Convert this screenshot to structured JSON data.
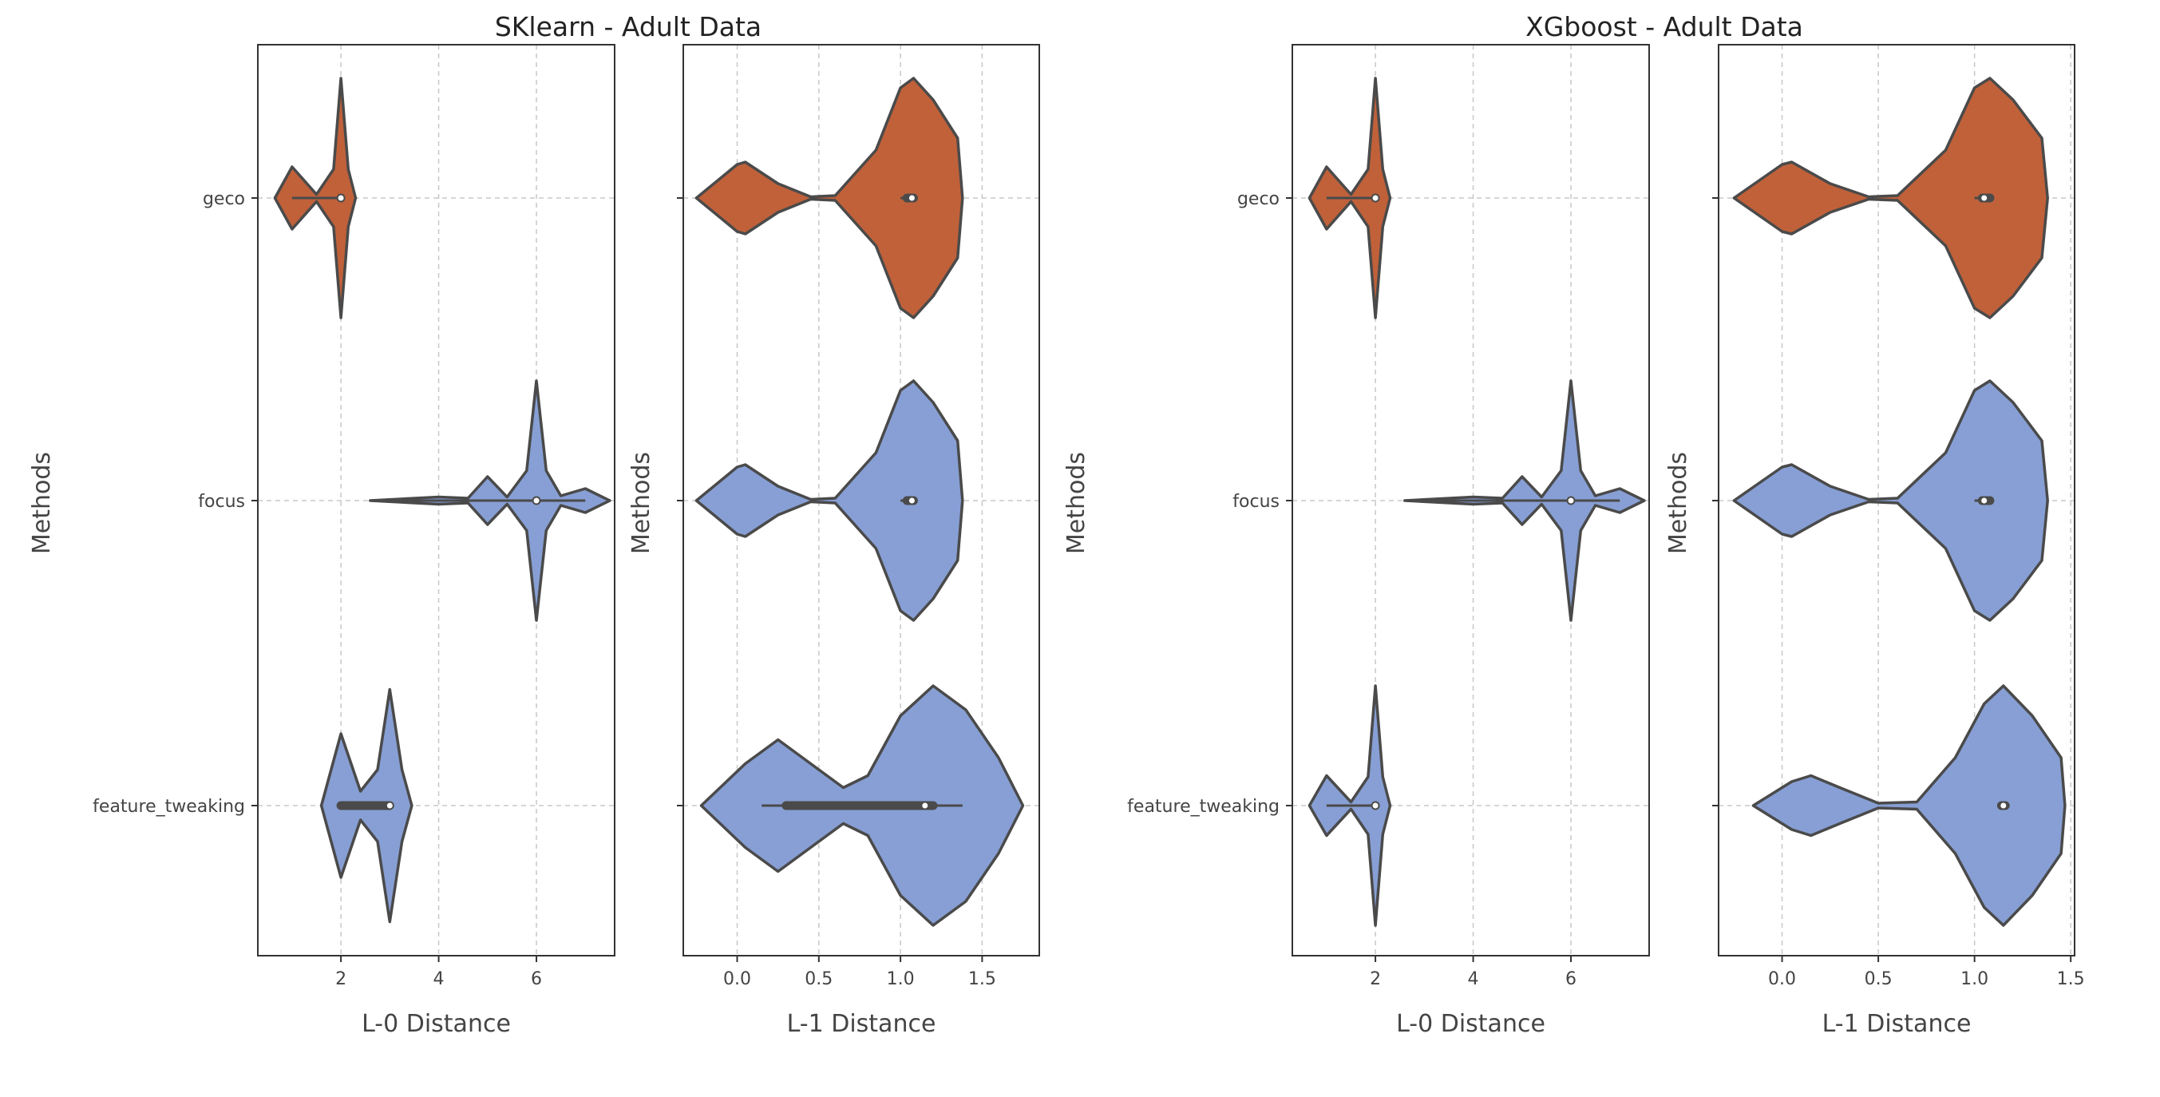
{
  "figure_titles": [
    "SKlearn - Adult Data",
    "XGboost - Adult Data"
  ],
  "colors": {
    "geco": "#c0613a",
    "focus": "#879fd4",
    "feature_tweaking": "#879fd4",
    "outline": "#4a4a4a",
    "grid": "#c8c8c8"
  },
  "chart_data": [
    {
      "type": "violin",
      "group": "SKlearn - Adult Data",
      "xlabel": "L-0 Distance",
      "ylabel": "Methods",
      "categories": [
        "geco",
        "focus",
        "feature_tweaking"
      ],
      "xlim": [
        0.3,
        7.6
      ],
      "xticks": [
        2,
        4,
        6
      ],
      "xtick_labels": [
        "2",
        "4",
        "6"
      ],
      "show_ytick_labels": true,
      "series": [
        {
          "name": "geco",
          "median": 2.0,
          "q1": 2.0,
          "q3": 2.0,
          "min": 1.0,
          "max": 2.0,
          "density": [
            [
              0.65,
              0
            ],
            [
              1.0,
              0.26
            ],
            [
              1.5,
              0.03
            ],
            [
              1.85,
              0.24
            ],
            [
              2.0,
              1.0
            ],
            [
              2.15,
              0.24
            ],
            [
              2.3,
              0
            ]
          ]
        },
        {
          "name": "focus",
          "median": 6.0,
          "q1": 6.0,
          "q3": 6.0,
          "min": 3.0,
          "max": 7.0,
          "density": [
            [
              2.6,
              0
            ],
            [
              4.0,
              0.03
            ],
            [
              4.6,
              0.02
            ],
            [
              5.0,
              0.2
            ],
            [
              5.4,
              0.03
            ],
            [
              5.8,
              0.25
            ],
            [
              6.0,
              1.0
            ],
            [
              6.2,
              0.25
            ],
            [
              6.5,
              0.04
            ],
            [
              7.0,
              0.1
            ],
            [
              7.5,
              0
            ]
          ]
        },
        {
          "name": "feature_tweaking",
          "median": 3.0,
          "q1": 2.0,
          "q3": 3.0,
          "min": 2.0,
          "max": 3.0,
          "density": [
            [
              1.6,
              0
            ],
            [
              2.0,
              0.6
            ],
            [
              2.4,
              0.12
            ],
            [
              2.75,
              0.3
            ],
            [
              3.0,
              0.97
            ],
            [
              3.25,
              0.3
            ],
            [
              3.45,
              0
            ]
          ]
        }
      ]
    },
    {
      "type": "violin",
      "group": "SKlearn - Adult Data",
      "xlabel": "L-1 Distance",
      "ylabel": "Methods",
      "categories": [
        "geco",
        "focus",
        "feature_tweaking"
      ],
      "xlim": [
        -0.33,
        1.85
      ],
      "xticks": [
        0.0,
        0.5,
        1.0,
        1.5
      ],
      "xtick_labels": [
        "0.0",
        "0.5",
        "1.0",
        "1.5"
      ],
      "show_ytick_labels": false,
      "series": [
        {
          "name": "geco",
          "median": 1.07,
          "q1": 1.04,
          "q3": 1.08,
          "min": 1.0,
          "max": 1.1,
          "density": [
            [
              -0.25,
              0
            ],
            [
              0.0,
              0.28
            ],
            [
              0.05,
              0.3
            ],
            [
              0.25,
              0.12
            ],
            [
              0.45,
              0.01
            ],
            [
              0.6,
              0.02
            ],
            [
              0.85,
              0.4
            ],
            [
              1.0,
              0.92
            ],
            [
              1.08,
              1.0
            ],
            [
              1.2,
              0.82
            ],
            [
              1.35,
              0.5
            ],
            [
              1.38,
              0
            ]
          ]
        },
        {
          "name": "focus",
          "median": 1.07,
          "q1": 1.04,
          "q3": 1.08,
          "min": 1.0,
          "max": 1.1,
          "density": [
            [
              -0.25,
              0
            ],
            [
              0.0,
              0.28
            ],
            [
              0.05,
              0.3
            ],
            [
              0.25,
              0.12
            ],
            [
              0.45,
              0.01
            ],
            [
              0.6,
              0.02
            ],
            [
              0.85,
              0.4
            ],
            [
              1.0,
              0.92
            ],
            [
              1.08,
              1.0
            ],
            [
              1.2,
              0.82
            ],
            [
              1.35,
              0.5
            ],
            [
              1.38,
              0
            ]
          ]
        },
        {
          "name": "feature_tweaking",
          "median": 1.15,
          "q1": 0.3,
          "q3": 1.2,
          "min": 0.15,
          "max": 1.38,
          "density": [
            [
              -0.22,
              0
            ],
            [
              0.05,
              0.35
            ],
            [
              0.25,
              0.55
            ],
            [
              0.45,
              0.35
            ],
            [
              0.65,
              0.15
            ],
            [
              0.8,
              0.25
            ],
            [
              1.0,
              0.75
            ],
            [
              1.2,
              1.0
            ],
            [
              1.4,
              0.8
            ],
            [
              1.6,
              0.4
            ],
            [
              1.75,
              0
            ]
          ]
        }
      ]
    },
    {
      "type": "violin",
      "group": "XGboost - Adult Data",
      "xlabel": "L-0 Distance",
      "ylabel": "Methods",
      "categories": [
        "geco",
        "focus",
        "feature_tweaking"
      ],
      "xlim": [
        0.3,
        7.6
      ],
      "xticks": [
        2,
        4,
        6
      ],
      "xtick_labels": [
        "2",
        "4",
        "6"
      ],
      "show_ytick_labels": true,
      "series": [
        {
          "name": "geco",
          "median": 2.0,
          "q1": 2.0,
          "q3": 2.0,
          "min": 1.0,
          "max": 2.0,
          "density": [
            [
              0.65,
              0
            ],
            [
              1.0,
              0.26
            ],
            [
              1.5,
              0.03
            ],
            [
              1.85,
              0.24
            ],
            [
              2.0,
              1.0
            ],
            [
              2.15,
              0.24
            ],
            [
              2.3,
              0
            ]
          ]
        },
        {
          "name": "focus",
          "median": 6.0,
          "q1": 6.0,
          "q3": 6.0,
          "min": 3.0,
          "max": 7.0,
          "density": [
            [
              2.6,
              0
            ],
            [
              4.0,
              0.03
            ],
            [
              4.6,
              0.02
            ],
            [
              5.0,
              0.2
            ],
            [
              5.4,
              0.03
            ],
            [
              5.8,
              0.25
            ],
            [
              6.0,
              1.0
            ],
            [
              6.2,
              0.25
            ],
            [
              6.5,
              0.04
            ],
            [
              7.0,
              0.1
            ],
            [
              7.5,
              0
            ]
          ]
        },
        {
          "name": "feature_tweaking",
          "median": 2.0,
          "q1": 2.0,
          "q3": 2.0,
          "min": 1.0,
          "max": 2.0,
          "density": [
            [
              0.65,
              0
            ],
            [
              1.0,
              0.25
            ],
            [
              1.5,
              0.03
            ],
            [
              1.85,
              0.24
            ],
            [
              2.0,
              1.0
            ],
            [
              2.15,
              0.24
            ],
            [
              2.3,
              0
            ]
          ]
        }
      ]
    },
    {
      "type": "violin",
      "group": "XGboost - Adult Data",
      "xlabel": "L-1 Distance",
      "ylabel": "Methods",
      "categories": [
        "geco",
        "focus",
        "feature_tweaking"
      ],
      "xlim": [
        -0.33,
        1.52
      ],
      "xticks": [
        0.0,
        0.5,
        1.0,
        1.5
      ],
      "xtick_labels": [
        "0.0",
        "0.5",
        "1.0",
        "1.5"
      ],
      "show_ytick_labels": false,
      "series": [
        {
          "name": "geco",
          "median": 1.05,
          "q1": 1.04,
          "q3": 1.08,
          "min": 1.0,
          "max": 1.1,
          "density": [
            [
              -0.25,
              0
            ],
            [
              0.0,
              0.28
            ],
            [
              0.05,
              0.3
            ],
            [
              0.25,
              0.12
            ],
            [
              0.45,
              0.01
            ],
            [
              0.6,
              0.02
            ],
            [
              0.85,
              0.4
            ],
            [
              1.0,
              0.92
            ],
            [
              1.08,
              1.0
            ],
            [
              1.2,
              0.82
            ],
            [
              1.35,
              0.5
            ],
            [
              1.38,
              0
            ]
          ]
        },
        {
          "name": "focus",
          "median": 1.05,
          "q1": 1.04,
          "q3": 1.08,
          "min": 1.0,
          "max": 1.1,
          "density": [
            [
              -0.25,
              0
            ],
            [
              0.0,
              0.28
            ],
            [
              0.05,
              0.3
            ],
            [
              0.25,
              0.12
            ],
            [
              0.45,
              0.01
            ],
            [
              0.6,
              0.02
            ],
            [
              0.85,
              0.4
            ],
            [
              1.0,
              0.92
            ],
            [
              1.08,
              1.0
            ],
            [
              1.2,
              0.82
            ],
            [
              1.35,
              0.5
            ],
            [
              1.38,
              0
            ]
          ]
        },
        {
          "name": "feature_tweaking",
          "median": 1.15,
          "q1": 1.14,
          "q3": 1.16,
          "min": 1.12,
          "max": 1.18,
          "density": [
            [
              -0.15,
              0
            ],
            [
              0.05,
              0.2
            ],
            [
              0.15,
              0.25
            ],
            [
              0.3,
              0.15
            ],
            [
              0.5,
              0.02
            ],
            [
              0.7,
              0.03
            ],
            [
              0.9,
              0.4
            ],
            [
              1.05,
              0.85
            ],
            [
              1.15,
              1.0
            ],
            [
              1.3,
              0.75
            ],
            [
              1.45,
              0.4
            ],
            [
              1.47,
              0
            ]
          ]
        }
      ]
    }
  ]
}
